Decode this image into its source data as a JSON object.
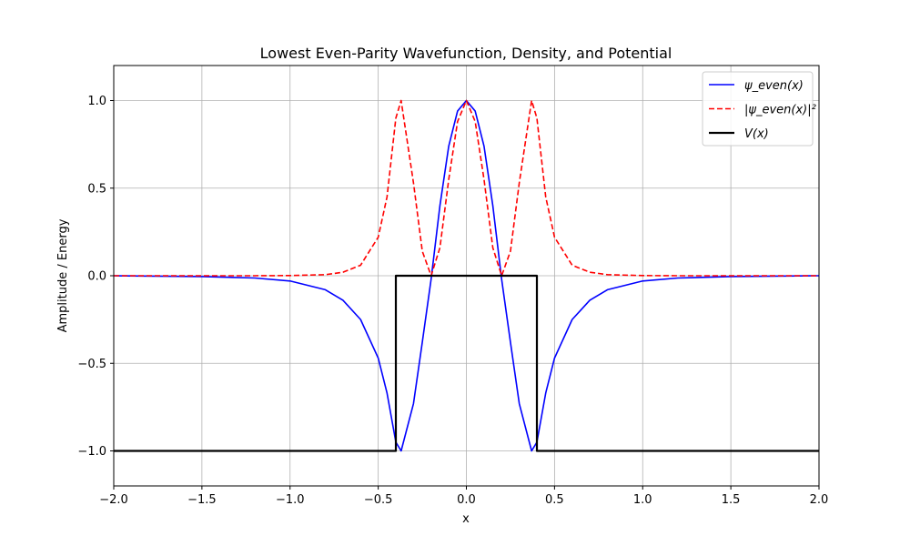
{
  "chart_data": {
    "type": "line",
    "title": "Lowest Even-Parity Wavefunction, Density, and Potential",
    "xlabel": "x",
    "ylabel": "Amplitude / Energy",
    "xlim": [
      -2.0,
      2.0
    ],
    "ylim": [
      -1.2,
      1.2
    ],
    "xticks": [
      -2.0,
      -1.5,
      -1.0,
      -0.5,
      0.0,
      0.5,
      1.0,
      1.5,
      2.0
    ],
    "xtick_labels": [
      "−2.0",
      "−1.5",
      "−1.0",
      "−0.5",
      "0.0",
      "0.5",
      "1.0",
      "1.5",
      "2.0"
    ],
    "yticks": [
      -1.0,
      -0.5,
      0.0,
      0.5,
      1.0
    ],
    "ytick_labels": [
      "−1.0",
      "−0.5",
      "0.0",
      "0.5",
      "1.0"
    ],
    "grid": true,
    "legend_position": "top-right",
    "series": [
      {
        "name": "ψ_even(x)",
        "color": "#0000ff",
        "style": "solid",
        "x": [
          -2.0,
          -1.5,
          -1.2,
          -1.0,
          -0.8,
          -0.7,
          -0.6,
          -0.5,
          -0.45,
          -0.4,
          -0.37,
          -0.3,
          -0.25,
          -0.2,
          -0.15,
          -0.1,
          -0.05,
          0.0,
          0.05,
          0.1,
          0.15,
          0.2,
          0.25,
          0.3,
          0.37,
          0.4,
          0.45,
          0.5,
          0.6,
          0.7,
          0.8,
          1.0,
          1.2,
          1.5,
          2.0
        ],
        "y": [
          -0.0,
          -0.005,
          -0.013,
          -0.03,
          -0.08,
          -0.14,
          -0.25,
          -0.47,
          -0.67,
          -0.95,
          -1.0,
          -0.73,
          -0.38,
          -0.02,
          0.4,
          0.74,
          0.94,
          1.0,
          0.94,
          0.74,
          0.4,
          -0.02,
          -0.38,
          -0.73,
          -1.0,
          -0.95,
          -0.67,
          -0.47,
          -0.25,
          -0.14,
          -0.08,
          -0.03,
          -0.013,
          -0.005,
          -0.0
        ]
      },
      {
        "name": "|ψ_even(x)|²",
        "color": "#ff0000",
        "style": "dashed",
        "x": [
          -2.0,
          -1.5,
          -1.2,
          -1.0,
          -0.8,
          -0.7,
          -0.6,
          -0.5,
          -0.45,
          -0.4,
          -0.37,
          -0.3,
          -0.25,
          -0.2,
          -0.15,
          -0.1,
          -0.05,
          0.0,
          0.05,
          0.1,
          0.15,
          0.2,
          0.25,
          0.3,
          0.37,
          0.4,
          0.45,
          0.5,
          0.6,
          0.7,
          0.8,
          1.0,
          1.2,
          1.5,
          2.0
        ],
        "y": [
          0.0,
          0.0,
          0.0,
          0.001,
          0.006,
          0.02,
          0.06,
          0.22,
          0.45,
          0.9,
          1.0,
          0.53,
          0.14,
          0.0,
          0.16,
          0.55,
          0.88,
          1.0,
          0.88,
          0.55,
          0.16,
          0.0,
          0.14,
          0.53,
          1.0,
          0.9,
          0.45,
          0.22,
          0.06,
          0.02,
          0.006,
          0.001,
          0.0,
          0.0,
          0.0
        ]
      },
      {
        "name": "V(x)",
        "color": "#000000",
        "style": "solid",
        "x": [
          -2.0,
          -0.4,
          -0.4,
          0.4,
          0.4,
          2.0
        ],
        "y": [
          -1.0,
          -1.0,
          0.0,
          0.0,
          -1.0,
          -1.0
        ]
      }
    ]
  }
}
